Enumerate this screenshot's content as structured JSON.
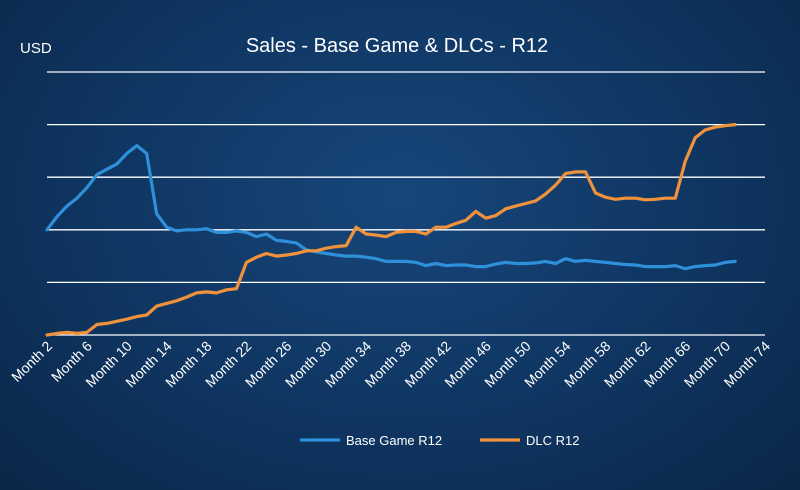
{
  "chart_data": {
    "type": "line",
    "title": "Sales - Base Game & DLCs - R12",
    "ylabel": "USD",
    "xlabel": "",
    "x_tick_labels": [
      "Month 2",
      "Month 6",
      "Month 10",
      "Month 14",
      "Month 18",
      "Month 22",
      "Month 26",
      "Month 30",
      "Month 34",
      "Month 38",
      "Month 42",
      "Month 46",
      "Month 50",
      "Month 54",
      "Month 58",
      "Month 62",
      "Month 66",
      "Month 70",
      "Month 74"
    ],
    "xlim": [
      2,
      74
    ],
    "ylim": [
      0,
      5
    ],
    "y_gridlines": [
      1,
      2,
      3,
      4,
      5
    ],
    "y_tick_labels_shown": false,
    "grid": true,
    "legend_position": "bottom",
    "colors": {
      "background": "#0f3561",
      "grid": "#ffffff"
    },
    "x": [
      2,
      3,
      4,
      5,
      6,
      7,
      8,
      9,
      10,
      11,
      12,
      13,
      14,
      15,
      16,
      17,
      18,
      19,
      20,
      21,
      22,
      23,
      24,
      25,
      26,
      27,
      28,
      29,
      30,
      31,
      32,
      33,
      34,
      35,
      36,
      37,
      38,
      39,
      40,
      41,
      42,
      43,
      44,
      45,
      46,
      47,
      48,
      49,
      50,
      51,
      52,
      53,
      54,
      55,
      56,
      57,
      58,
      59,
      60,
      61,
      62,
      63,
      64,
      65,
      66,
      67,
      68,
      69,
      70,
      71
    ],
    "series": [
      {
        "name": "Base Game R12",
        "color": "#2e8fdb",
        "values": [
          2.0,
          2.25,
          2.45,
          2.6,
          2.8,
          3.05,
          3.15,
          3.25,
          3.45,
          3.6,
          3.45,
          2.3,
          2.05,
          1.98,
          2.0,
          2.0,
          2.02,
          1.95,
          1.95,
          1.98,
          1.95,
          1.87,
          1.92,
          1.8,
          1.78,
          1.75,
          1.62,
          1.58,
          1.55,
          1.52,
          1.5,
          1.5,
          1.48,
          1.45,
          1.4,
          1.4,
          1.4,
          1.38,
          1.32,
          1.36,
          1.32,
          1.33,
          1.33,
          1.3,
          1.3,
          1.35,
          1.38,
          1.36,
          1.36,
          1.37,
          1.4,
          1.36,
          1.45,
          1.4,
          1.42,
          1.4,
          1.38,
          1.36,
          1.34,
          1.33,
          1.3,
          1.3,
          1.3,
          1.32,
          1.26,
          1.3,
          1.32,
          1.33,
          1.38,
          1.4
        ]
      },
      {
        "name": "DLC R12",
        "color": "#f0923c",
        "values": [
          0.0,
          0.03,
          0.05,
          0.03,
          0.05,
          0.2,
          0.22,
          0.26,
          0.3,
          0.35,
          0.38,
          0.55,
          0.6,
          0.65,
          0.72,
          0.8,
          0.82,
          0.8,
          0.86,
          0.88,
          1.38,
          1.48,
          1.55,
          1.5,
          1.52,
          1.55,
          1.6,
          1.6,
          1.65,
          1.68,
          1.7,
          2.05,
          1.92,
          1.9,
          1.87,
          1.95,
          1.97,
          1.97,
          1.92,
          2.05,
          2.05,
          2.12,
          2.18,
          2.35,
          2.22,
          2.27,
          2.4,
          2.45,
          2.5,
          2.55,
          2.68,
          2.85,
          3.07,
          3.1,
          3.1,
          2.7,
          2.62,
          2.58,
          2.6,
          2.6,
          2.57,
          2.58,
          2.6,
          2.6,
          3.3,
          3.75,
          3.9,
          3.95,
          3.98,
          4.0
        ]
      }
    ]
  }
}
